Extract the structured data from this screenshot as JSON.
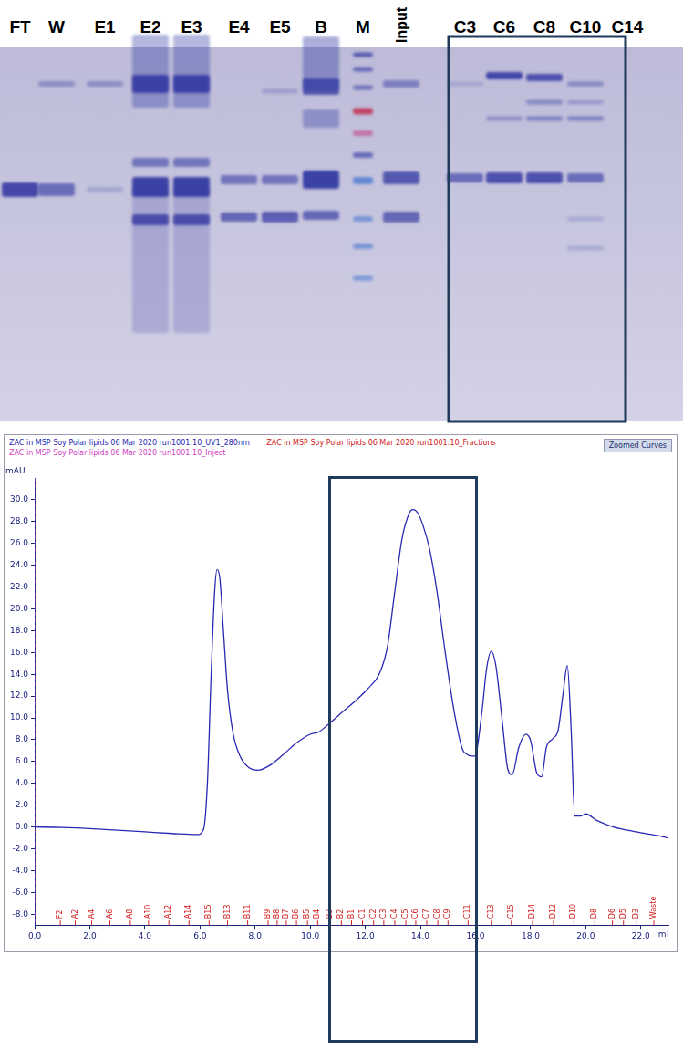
{
  "gel": {
    "lanes": [
      "FT",
      "W",
      "E1",
      "E2",
      "E3",
      "E4",
      "E5",
      "B",
      "M",
      "Input",
      "C3",
      "C6",
      "C8",
      "C10",
      "C14"
    ]
  },
  "chart_data": {
    "type": "line",
    "button": "Zoomed Curves",
    "y_label": "mAU",
    "x_label": "ml",
    "series": [
      {
        "name": "ZAC in MSP Soy Polar lipids 06 Mar 2020 run1001:10_UV1_280nm",
        "color": "#2828b4",
        "x": [
          0,
          1.0,
          2.0,
          3.0,
          4.0,
          5.0,
          5.9,
          6.13,
          6.27,
          6.4,
          6.53,
          6.62,
          6.72,
          6.85,
          7.0,
          7.2,
          7.47,
          7.8,
          8.1,
          8.5,
          9.0,
          9.5,
          10.0,
          10.3,
          10.7,
          11.2,
          11.7,
          12.1,
          12.5,
          12.8,
          13.07,
          13.33,
          13.6,
          13.73,
          13.9,
          14.1,
          14.33,
          14.6,
          14.9,
          15.23,
          15.57,
          15.97,
          16.23,
          16.4,
          16.57,
          16.73,
          16.97,
          17.17,
          17.33,
          17.57,
          17.83,
          18.0,
          18.23,
          18.4,
          18.57,
          18.8,
          19.0,
          19.17,
          19.33,
          19.47,
          19.6,
          19.8,
          20.0,
          20.4,
          21.0,
          21.73,
          22.4,
          23.0
        ],
        "values": [
          0,
          -0.05,
          -0.15,
          -0.3,
          -0.45,
          -0.6,
          -0.7,
          -0.2,
          4.1,
          13.7,
          21.5,
          23.6,
          22.8,
          18.0,
          12.5,
          8.6,
          6.4,
          5.4,
          5.2,
          5.6,
          6.6,
          7.7,
          8.5,
          8.7,
          9.5,
          10.6,
          11.7,
          12.7,
          14.0,
          16.5,
          21.6,
          26.4,
          28.8,
          29.1,
          28.8,
          27.6,
          25.5,
          21.6,
          16.0,
          10.5,
          6.9,
          6.5,
          10.5,
          14.5,
          16.1,
          14.9,
          9.7,
          5.3,
          4.8,
          7.3,
          8.5,
          7.9,
          4.9,
          4.6,
          7.3,
          8.1,
          8.9,
          12.1,
          14.8,
          8.9,
          1.0,
          1.0,
          1.2,
          0.6,
          0.0,
          -0.4,
          -0.7,
          -1.0
        ]
      }
    ],
    "fractions": {
      "name": "ZAC in MSP Soy Polar lipids 06 Mar 2020 run1001:10_Fractions",
      "color": "#d42020",
      "x": [
        0.93,
        1.47,
        2.07,
        2.73,
        3.47,
        4.13,
        4.87,
        5.6,
        6.33,
        7.0,
        7.73,
        8.47,
        8.8,
        9.13,
        9.5,
        9.9,
        10.27,
        10.73,
        11.13,
        11.5,
        11.9,
        12.3,
        12.67,
        13.07,
        13.47,
        13.83,
        14.23,
        14.63,
        15.0,
        15.73,
        16.57,
        17.3,
        18.07,
        18.83,
        19.57,
        20.33,
        20.97,
        21.37,
        21.83,
        22.47
      ],
      "labels": [
        "F2",
        "A2",
        "A4",
        "A6",
        "A8",
        "A10",
        "A12",
        "A14",
        "B15",
        "B13",
        "B11",
        "B9",
        "B8",
        "B7",
        "B6",
        "B5",
        "B4",
        "B3",
        "B2",
        "B1",
        "C1",
        "C2",
        "C3",
        "C4",
        "C5",
        "C6",
        "C7",
        "C8",
        "C9",
        "C11",
        "C13",
        "C15",
        "D14",
        "D12",
        "D10",
        "D8",
        "D6",
        "D5",
        "D3",
        "Waste"
      ]
    },
    "inject": {
      "name": "ZAC in MSP Soy Polar lipids 06 Mar 2020 run1001:10_Inject",
      "color": "#d040c0",
      "x": 0
    },
    "highlight": [
      10.67,
      16.07
    ],
    "xlim": [
      0,
      23
    ],
    "xticks": [
      {
        "value": 0,
        "label": "0.0"
      },
      {
        "value": 2,
        "label": "2.0"
      },
      {
        "value": 4,
        "label": "4.0"
      },
      {
        "value": 6,
        "label": "6.0"
      },
      {
        "value": 8,
        "label": "8.0"
      },
      {
        "value": 10,
        "label": "10.0"
      },
      {
        "value": 12,
        "label": "12.0"
      },
      {
        "value": 14,
        "label": "14.0"
      },
      {
        "value": 16,
        "label": "16.0"
      },
      {
        "value": 18,
        "label": "18.0"
      },
      {
        "value": 20,
        "label": "20.0"
      },
      {
        "value": 22,
        "label": "22.0"
      }
    ],
    "ylim": [
      -9,
      32
    ],
    "yticks": [
      {
        "value": -8,
        "label": "-8.0"
      },
      {
        "value": -6,
        "label": "-6.0"
      },
      {
        "value": -4,
        "label": "-4.0"
      },
      {
        "value": -2,
        "label": "-2.0"
      },
      {
        "value": 0,
        "label": "0.0"
      },
      {
        "value": 2,
        "label": "2.0"
      },
      {
        "value": 4,
        "label": "4.0"
      },
      {
        "value": 6,
        "label": "6.0"
      },
      {
        "value": 8,
        "label": "8.0"
      },
      {
        "value": 10,
        "label": "10.0"
      },
      {
        "value": 12,
        "label": "12.0"
      },
      {
        "value": 14,
        "label": "14.0"
      },
      {
        "value": 16,
        "label": "16.0"
      },
      {
        "value": 18,
        "label": "18.0"
      },
      {
        "value": 20,
        "label": "20.0"
      },
      {
        "value": 22,
        "label": "22.0"
      },
      {
        "value": 24,
        "label": "24.0"
      },
      {
        "value": 26,
        "label": "26.0"
      },
      {
        "value": 28,
        "label": "28.0"
      },
      {
        "value": 30,
        "label": "30.0"
      }
    ],
    "grid": false
  }
}
